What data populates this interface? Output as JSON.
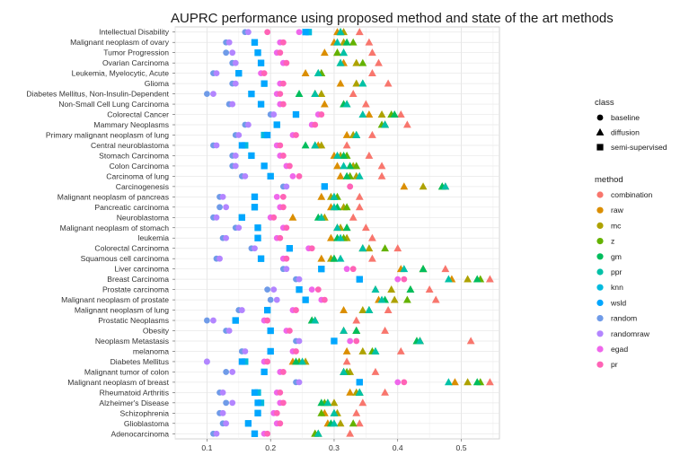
{
  "chart_data": {
    "type": "scatter",
    "title": "AUPRC performance using proposed method and state of the art methods",
    "xlabel": "",
    "ylabel": "",
    "xlim": [
      0.05,
      0.56
    ],
    "xticks": [
      0.1,
      0.2,
      0.3,
      0.4,
      0.5
    ],
    "xtick_labels": [
      "0.1",
      "0.2",
      "0.3",
      "0.4",
      "0.5"
    ],
    "grid": true,
    "diseases": [
      "Intellectual Disability",
      "Malignant neoplasm of ovary",
      "Tumor Progression",
      "Ovarian Carcinoma",
      "Leukemia, Myelocytic, Acute",
      "Glioma",
      "Diabetes Mellitus, Non-Insulin-Dependent",
      "Non-Small Cell Lung Carcinoma",
      "Colorectal Cancer",
      "Mammary Neoplasms",
      "Primary malignant neoplasm of lung",
      "Central neuroblastoma",
      "Stomach Carcinoma",
      "Colon Carcinoma",
      "Carcinoma of lung",
      "Carcinogenesis",
      "Malignant neoplasm of pancreas",
      "Pancreatic carcinoma",
      "Neuroblastoma",
      "Malignant neoplasm of stomach",
      "leukemia",
      "Colorectal Carcinoma",
      "Squamous cell carcinoma",
      "Liver carcinoma",
      "Breast Carcinoma",
      "Prostate carcinoma",
      "Malignant neoplasm of prostate",
      "Malignant neoplasm of lung",
      "Prostatic Neoplasms",
      "Obesity",
      "Neoplasm Metastasis",
      "melanoma",
      "Diabetes Mellitus",
      "Malignant tumor of colon",
      "Malignant neoplasm of breast",
      "Rheumatoid Arthritis",
      "Alzheimer's Disease",
      "Schizophrenia",
      "Glioblastoma",
      "Adenocarcinoma"
    ],
    "legend": {
      "class_title": "class",
      "classes": [
        {
          "name": "baseline",
          "shape": "circle"
        },
        {
          "name": "diffusion",
          "shape": "triangle"
        },
        {
          "name": "semi-supervised",
          "shape": "square"
        }
      ],
      "method_title": "method",
      "methods": [
        {
          "name": "combination",
          "color": "#F8766D",
          "class": "diffusion"
        },
        {
          "name": "raw",
          "color": "#DB8E00",
          "class": "diffusion"
        },
        {
          "name": "mc",
          "color": "#AEA200",
          "class": "diffusion"
        },
        {
          "name": "z",
          "color": "#64B200",
          "class": "diffusion"
        },
        {
          "name": "gm",
          "color": "#00BD5C",
          "class": "diffusion"
        },
        {
          "name": "ppr",
          "color": "#00C1A7",
          "class": "diffusion"
        },
        {
          "name": "knn",
          "color": "#00BADE",
          "class": "semi-supervised"
        },
        {
          "name": "wsld",
          "color": "#00A6FF",
          "class": "semi-supervised"
        },
        {
          "name": "random",
          "color": "#6F9BE8",
          "class": "baseline"
        },
        {
          "name": "randomraw",
          "color": "#B385FF",
          "class": "baseline"
        },
        {
          "name": "egad",
          "color": "#EF67EB",
          "class": "baseline"
        },
        {
          "name": "pr",
          "color": "#FF63B6",
          "class": "baseline"
        }
      ]
    },
    "series": [
      {
        "method": "combination",
        "values": [
          0.34,
          0.355,
          0.36,
          0.37,
          0.36,
          0.385,
          0.33,
          0.35,
          0.405,
          0.415,
          0.36,
          0.32,
          0.355,
          0.375,
          0.375,
          0.475,
          0.34,
          0.34,
          0.33,
          0.35,
          0.36,
          0.4,
          0.36,
          0.475,
          0.545,
          0.45,
          0.46,
          0.385,
          0.335,
          0.38,
          0.515,
          0.405,
          0.32,
          0.365,
          0.545,
          0.38,
          0.345,
          0.335,
          0.34,
          0.325
        ]
      },
      {
        "method": "raw",
        "values": [
          0.305,
          0.3,
          0.285,
          0.315,
          0.255,
          0.31,
          0.27,
          0.285,
          0.355,
          0.38,
          0.32,
          0.275,
          0.3,
          0.305,
          0.31,
          0.41,
          0.28,
          0.295,
          0.235,
          0.305,
          0.295,
          0.345,
          0.28,
          0.405,
          0.485,
          0.365,
          0.37,
          0.315,
          0.27,
          0.315,
          0.435,
          0.32,
          0.235,
          0.315,
          0.49,
          0.325,
          0.29,
          0.285,
          0.29,
          0.275
        ]
      },
      {
        "method": "mc",
        "values": [
          0.315,
          0.315,
          0.305,
          0.335,
          0.28,
          0.335,
          0.28,
          0.315,
          0.375,
          0.38,
          0.33,
          0.28,
          0.31,
          0.33,
          0.335,
          0.44,
          0.295,
          0.315,
          0.285,
          0.31,
          0.32,
          0.355,
          0.295,
          0.44,
          0.51,
          0.39,
          0.395,
          0.345,
          0.27,
          0.335,
          0.435,
          0.345,
          0.255,
          0.325,
          0.51,
          0.335,
          0.3,
          0.305,
          0.31,
          0.27
        ]
      },
      {
        "method": "z",
        "values": [
          0.31,
          0.33,
          0.305,
          0.345,
          0.28,
          0.345,
          0.27,
          0.32,
          0.39,
          0.375,
          0.335,
          0.27,
          0.32,
          0.335,
          0.325,
          0.47,
          0.305,
          0.32,
          0.28,
          0.32,
          0.315,
          0.38,
          0.3,
          0.44,
          0.53,
          0.42,
          0.415,
          0.355,
          0.265,
          0.335,
          0.43,
          0.36,
          0.245,
          0.32,
          0.53,
          0.34,
          0.285,
          0.28,
          0.33,
          0.27
        ]
      },
      {
        "method": "gm",
        "values": [
          0.31,
          0.32,
          0.315,
          0.31,
          0.275,
          0.345,
          0.245,
          0.315,
          0.395,
          0.38,
          0.335,
          0.255,
          0.315,
          0.325,
          0.32,
          0.47,
          0.3,
          0.305,
          0.275,
          0.32,
          0.305,
          0.345,
          0.3,
          0.44,
          0.525,
          0.42,
          0.38,
          0.355,
          0.265,
          0.335,
          0.43,
          0.365,
          0.24,
          0.315,
          0.525,
          0.34,
          0.28,
          0.3,
          0.295,
          0.275
        ]
      },
      {
        "method": "ppr",
        "values": [
          0.31,
          0.305,
          0.315,
          0.31,
          0.275,
          0.345,
          0.27,
          0.32,
          0.345,
          0.38,
          0.335,
          0.27,
          0.305,
          0.315,
          0.34,
          0.475,
          0.3,
          0.3,
          0.28,
          0.305,
          0.31,
          0.345,
          0.31,
          0.41,
          0.48,
          0.365,
          0.375,
          0.355,
          0.27,
          0.315,
          0.435,
          0.365,
          0.25,
          0.315,
          0.48,
          0.34,
          0.29,
          0.3,
          0.3,
          0.275
        ]
      },
      {
        "method": "knn",
        "values": [
          0.26,
          0.175,
          0.18,
          0.185,
          0.15,
          0.19,
          0.17,
          0.185,
          0.24,
          0.21,
          0.19,
          0.16,
          0.17,
          0.19,
          0.2,
          0.285,
          0.175,
          0.175,
          0.155,
          0.18,
          0.18,
          0.23,
          0.185,
          0.28,
          0.34,
          0.245,
          0.255,
          0.195,
          0.145,
          0.2,
          0.3,
          0.2,
          0.16,
          0.19,
          0.34,
          0.18,
          0.185,
          0.18,
          0.165,
          0.175
        ]
      },
      {
        "method": "wsld",
        "values": [
          0.255,
          0.175,
          0.18,
          0.185,
          0.15,
          0.19,
          0.17,
          0.185,
          0.24,
          0.21,
          0.195,
          0.155,
          0.17,
          0.19,
          0.2,
          0.285,
          0.175,
          0.175,
          0.155,
          0.18,
          0.18,
          0.23,
          0.185,
          0.28,
          0.34,
          0.245,
          0.255,
          0.195,
          0.145,
          0.2,
          0.3,
          0.2,
          0.155,
          0.19,
          0.34,
          0.175,
          0.18,
          0.18,
          0.165,
          0.175
        ]
      },
      {
        "method": "random",
        "values": [
          0.16,
          0.13,
          0.13,
          0.14,
          0.11,
          0.14,
          0.1,
          0.135,
          0.2,
          0.16,
          0.145,
          0.11,
          0.14,
          0.14,
          0.155,
          0.22,
          0.12,
          0.12,
          0.11,
          0.145,
          0.125,
          0.17,
          0.115,
          0.22,
          0.24,
          0.195,
          0.2,
          0.15,
          0.1,
          0.13,
          0.24,
          0.155,
          0.1,
          0.13,
          0.24,
          0.12,
          0.13,
          0.12,
          0.125,
          0.11
        ]
      },
      {
        "method": "randomraw",
        "values": [
          0.165,
          0.135,
          0.14,
          0.145,
          0.115,
          0.145,
          0.11,
          0.14,
          0.205,
          0.165,
          0.15,
          0.115,
          0.145,
          0.145,
          0.16,
          0.225,
          0.125,
          0.13,
          0.115,
          0.15,
          0.13,
          0.175,
          0.12,
          0.225,
          0.245,
          0.205,
          0.21,
          0.155,
          0.11,
          0.135,
          0.245,
          0.16,
          0.1,
          0.14,
          0.245,
          0.125,
          0.14,
          0.125,
          0.13,
          0.115
        ]
      },
      {
        "method": "egad",
        "values": [
          0.245,
          0.215,
          0.21,
          0.22,
          0.185,
          0.215,
          0.21,
          0.215,
          0.275,
          0.265,
          0.235,
          0.21,
          0.215,
          0.225,
          0.235,
          0.325,
          0.21,
          0.215,
          0.2,
          0.22,
          0.21,
          0.26,
          0.22,
          0.32,
          0.4,
          0.265,
          0.28,
          0.235,
          0.19,
          0.225,
          0.325,
          0.235,
          0.19,
          0.215,
          0.4,
          0.21,
          0.215,
          0.205,
          0.21,
          0.19
        ]
      },
      {
        "method": "pr",
        "values": [
          0.195,
          0.22,
          0.215,
          0.225,
          0.19,
          0.22,
          0.215,
          0.22,
          0.28,
          0.27,
          0.24,
          0.215,
          0.22,
          0.23,
          0.245,
          0.325,
          0.22,
          0.22,
          0.205,
          0.225,
          0.215,
          0.265,
          0.225,
          0.33,
          0.41,
          0.275,
          0.285,
          0.24,
          0.195,
          0.23,
          0.335,
          0.24,
          0.195,
          0.22,
          0.41,
          0.215,
          0.22,
          0.21,
          0.215,
          0.195
        ]
      }
    ]
  }
}
